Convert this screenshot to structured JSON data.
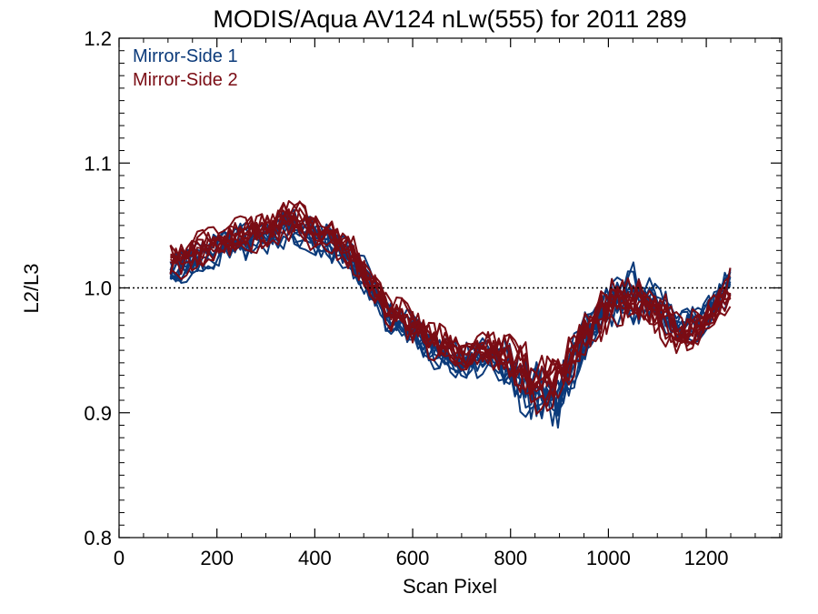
{
  "chart_data": {
    "type": "line",
    "title": "MODIS/Aqua AV124 nLw(555) for 2011 289",
    "xlabel": "Scan Pixel",
    "ylabel": "L2/L3",
    "xlim": [
      0,
      1354
    ],
    "ylim": [
      0.8,
      1.2
    ],
    "xticks": [
      0,
      200,
      400,
      600,
      800,
      1000,
      1200
    ],
    "xtick_labels": [
      "0",
      "200",
      "400",
      "600",
      "800",
      "1000",
      "1200"
    ],
    "yticks": [
      0.8,
      0.9,
      1.0,
      1.1,
      1.2
    ],
    "ytick_labels": [
      "0.8",
      "0.9",
      "1.0",
      "1.1",
      "1.2"
    ],
    "reference_line": {
      "y": 1.0,
      "style": "dotted"
    },
    "grid": false,
    "legend_position": "top-left",
    "series_colors": {
      "Mirror-Side 1": "#0b3a7a",
      "Mirror-Side 2": "#7a0c14"
    },
    "x": [
      105,
      150,
      200,
      250,
      300,
      350,
      400,
      450,
      500,
      550,
      600,
      650,
      700,
      750,
      800,
      850,
      900,
      950,
      1000,
      1050,
      1100,
      1150,
      1200,
      1250
    ],
    "series": [
      {
        "name": "Mirror-Side 1",
        "values": [
          1.01,
          1.02,
          1.03,
          1.035,
          1.04,
          1.05,
          1.04,
          1.03,
          1.01,
          0.975,
          0.965,
          0.945,
          0.94,
          0.945,
          0.935,
          0.915,
          0.91,
          0.955,
          0.99,
          0.995,
          0.985,
          0.965,
          0.975,
          1.005
        ]
      },
      {
        "name": "Mirror-Side 2",
        "values": [
          1.02,
          1.025,
          1.035,
          1.04,
          1.045,
          1.055,
          1.045,
          1.035,
          1.015,
          0.98,
          0.97,
          0.955,
          0.945,
          0.95,
          0.94,
          0.92,
          0.925,
          0.96,
          0.985,
          0.99,
          0.98,
          0.96,
          0.97,
          1.0
        ]
      }
    ]
  }
}
